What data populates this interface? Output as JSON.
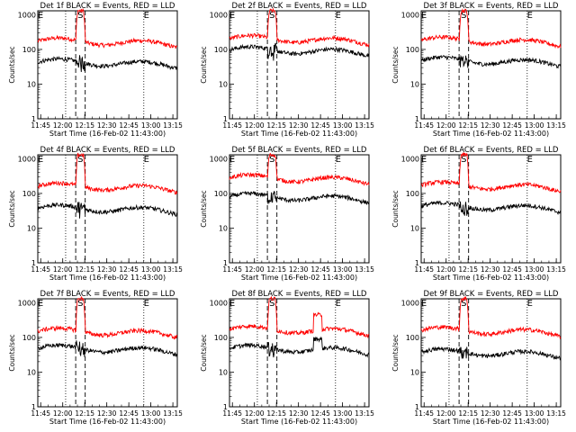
{
  "figure": {
    "x_ticks": [
      "11:45",
      "12:00",
      "12:15",
      "12:30",
      "12:45",
      "13:00",
      "13:15"
    ],
    "y_ticks": [
      "1",
      "10",
      "100",
      "1000"
    ],
    "ylabel": "Counts/sec",
    "xlabel": "Start Time (16-Feb-02 11:43:00)",
    "marker_s": "S",
    "marker_e": "E",
    "colors": {
      "events": "#000000",
      "lld": "#ff0000",
      "axis": "#000000"
    }
  },
  "chart_data": [
    {
      "type": "line",
      "title": "Det 1f BLACK = Events, RED = LLD",
      "ylim": [
        1,
        1000
      ],
      "yscale": "log",
      "series": [
        {
          "color": "#ff0000",
          "base": 160,
          "peak": 1300,
          "spikes": []
        },
        {
          "color": "#000000",
          "base": 40,
          "peak": 40,
          "spikes": []
        }
      ]
    },
    {
      "type": "line",
      "title": "Det 2f BLACK = Events, RED = LLD",
      "ylim": [
        1,
        1000
      ],
      "yscale": "log",
      "series": [
        {
          "color": "#ff0000",
          "base": 190,
          "peak": 1300,
          "spikes": []
        },
        {
          "color": "#000000",
          "base": 90,
          "peak": 90,
          "spikes": []
        }
      ]
    },
    {
      "type": "line",
      "title": "Det 3f BLACK = Events, RED = LLD",
      "ylim": [
        1,
        1000
      ],
      "yscale": "log",
      "series": [
        {
          "color": "#ff0000",
          "base": 170,
          "peak": 1300,
          "spikes": []
        },
        {
          "color": "#000000",
          "base": 45,
          "peak": 45,
          "spikes": []
        }
      ]
    },
    {
      "type": "line",
      "title": "Det 4f BLACK = Events, RED = LLD",
      "ylim": [
        1,
        1000
      ],
      "yscale": "log",
      "series": [
        {
          "color": "#ff0000",
          "base": 150,
          "peak": 1300,
          "spikes": []
        },
        {
          "color": "#000000",
          "base": 35,
          "peak": 35,
          "spikes": []
        }
      ]
    },
    {
      "type": "line",
      "title": "Det 5f BLACK = Events, RED = LLD",
      "ylim": [
        1,
        1000
      ],
      "yscale": "log",
      "series": [
        {
          "color": "#ff0000",
          "base": 260,
          "peak": 1300,
          "spikes": []
        },
        {
          "color": "#000000",
          "base": 75,
          "peak": 75,
          "spikes": []
        }
      ]
    },
    {
      "type": "line",
      "title": "Det 6f BLACK = Events, RED = LLD",
      "ylim": [
        1,
        1000
      ],
      "yscale": "log",
      "series": [
        {
          "color": "#ff0000",
          "base": 160,
          "peak": 1300,
          "spikes": []
        },
        {
          "color": "#000000",
          "base": 40,
          "peak": 40,
          "spikes": []
        }
      ]
    },
    {
      "type": "line",
      "title": "Det 7f BLACK = Events, RED = LLD",
      "ylim": [
        1,
        1000
      ],
      "yscale": "log",
      "series": [
        {
          "color": "#ff0000",
          "base": 140,
          "peak": 1300,
          "spikes": []
        },
        {
          "color": "#000000",
          "base": 45,
          "peak": 45,
          "spikes": []
        }
      ]
    },
    {
      "type": "line",
      "title": "Det 8f BLACK = Events, RED = LLD",
      "ylim": [
        1,
        1000
      ],
      "yscale": "log",
      "series": [
        {
          "color": "#ff0000",
          "base": 160,
          "peak": 1300,
          "spikes": [
            {
              "t0": 12.67,
              "t1": 12.77,
              "v": 450
            }
          ]
        },
        {
          "color": "#000000",
          "base": 45,
          "peak": 45,
          "spikes": [
            {
              "t0": 12.67,
              "t1": 12.77,
              "v": 90
            }
          ]
        }
      ]
    },
    {
      "type": "line",
      "title": "Det 9f BLACK = Events, RED = LLD",
      "ylim": [
        1,
        1000
      ],
      "yscale": "log",
      "series": [
        {
          "color": "#ff0000",
          "base": 150,
          "peak": 1300,
          "spikes": []
        },
        {
          "color": "#000000",
          "base": 35,
          "peak": 35,
          "spikes": []
        }
      ]
    }
  ]
}
